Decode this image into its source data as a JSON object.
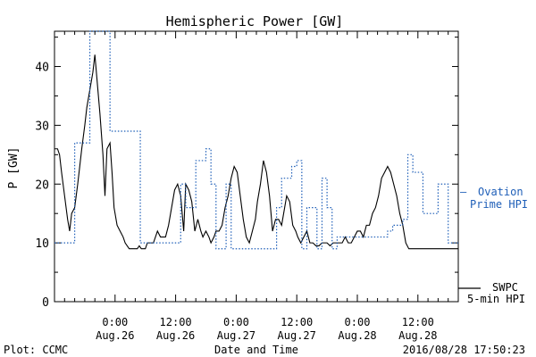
{
  "chart_data": {
    "type": "line",
    "title": "Hemispheric Power [GW]",
    "xlabel": "Date and Time",
    "ylabel": "P [GW]",
    "ylim": [
      0,
      46
    ],
    "yticks": [
      0,
      10,
      20,
      30,
      40
    ],
    "xlim_hours": [
      -6,
      30
    ],
    "xticks": [
      {
        "hour": 0,
        "time": "0:00",
        "date": "Aug.26"
      },
      {
        "hour": 6,
        "time": "12:00",
        "date": "Aug.26"
      },
      {
        "hour": 12,
        "time": "0:00",
        "date": "Aug.27"
      },
      {
        "hour": 18,
        "time": "12:00",
        "date": "Aug.27"
      },
      {
        "hour": 24,
        "time": "0:00",
        "date": "Aug.28"
      },
      {
        "hour": 30,
        "time": "12:00",
        "date": "Aug.28"
      }
    ],
    "series": [
      {
        "name": "SWPC 5-min HPI",
        "color": "#000000",
        "style": "solid",
        "x": [
          -6.0,
          -5.7,
          -5.5,
          -5.3,
          -5.0,
          -4.7,
          -4.5,
          -4.3,
          -4.0,
          -3.7,
          -3.5,
          -3.3,
          -3.0,
          -2.8,
          -2.5,
          -2.2,
          -2.0,
          -1.8,
          -1.5,
          -1.2,
          -1.0,
          -0.8,
          -0.5,
          -0.3,
          -0.1,
          0.2,
          0.5,
          0.8,
          1.0,
          1.2,
          1.4,
          1.6,
          1.8,
          2.0,
          2.2,
          2.4,
          2.6,
          2.8,
          3.0,
          3.2,
          3.5,
          3.8,
          4.0,
          4.2,
          4.5,
          4.8,
          5.0,
          5.3,
          5.6,
          5.9,
          6.2,
          6.5,
          6.8,
          7.0,
          7.3,
          7.6,
          7.9,
          8.2,
          8.5,
          8.7,
          9.0,
          9.3,
          9.5,
          9.8,
          10.0,
          10.3,
          10.6,
          10.9,
          11.2,
          11.5,
          11.8,
          12.1,
          12.4,
          12.7,
          13.0,
          13.3,
          13.6,
          13.9,
          14.1,
          14.4,
          14.7,
          15.0,
          15.3,
          15.6,
          15.9,
          16.2,
          16.5,
          16.8,
          17.0,
          17.3,
          17.6,
          17.9,
          18.1,
          18.4,
          18.7,
          19.0,
          19.3,
          19.6,
          19.9,
          20.2,
          20.5,
          20.8,
          21.0,
          21.3,
          21.6,
          21.9,
          22.2,
          22.5,
          22.8,
          23.1,
          23.4,
          23.7,
          24.0,
          24.3,
          24.6,
          24.9,
          25.2,
          25.5,
          25.8,
          26.1,
          26.4,
          26.7,
          27.0,
          27.3,
          27.6,
          27.9,
          28.2,
          28.5,
          28.8,
          29.1,
          29.4,
          29.7,
          30.0,
          30.3,
          30.6,
          30.9,
          31.2,
          31.5,
          31.8,
          32.1,
          32.4,
          32.6,
          32.9,
          33.2,
          33.5,
          33.8,
          34.0
        ],
        "y": [
          26,
          26,
          25,
          22,
          18,
          14,
          12,
          15,
          16,
          20,
          23,
          26,
          30,
          33,
          36,
          39,
          42,
          38,
          32,
          25,
          18,
          26,
          27,
          22,
          16,
          13,
          12,
          11,
          10,
          9.5,
          9,
          9,
          9,
          9,
          9,
          9.5,
          9,
          9,
          9,
          10,
          10,
          10,
          11,
          12,
          11,
          11,
          11,
          13,
          16,
          19,
          20,
          18,
          12,
          20,
          19,
          17,
          12,
          14,
          12,
          11,
          12,
          11,
          10,
          11,
          12,
          12,
          13,
          16,
          18,
          21,
          23,
          22,
          18,
          14,
          11,
          10,
          12,
          14,
          17,
          20,
          24,
          22,
          18,
          12,
          14,
          14,
          13,
          16,
          18,
          17,
          13,
          12,
          11,
          10,
          11,
          12,
          10,
          10,
          9.5,
          9.5,
          10,
          10,
          10,
          9.5,
          10,
          10,
          10,
          10,
          11,
          10,
          10,
          11,
          12,
          12,
          11,
          13,
          13,
          15,
          16,
          18,
          21,
          22,
          23,
          22,
          20,
          18,
          15,
          13,
          10,
          9,
          9,
          9,
          9,
          9,
          9,
          9,
          9,
          9,
          9,
          9,
          9,
          9,
          9,
          9,
          9,
          9,
          9
        ],
        "note_y_end": 9
      },
      {
        "name": "Ovation Prime HPI",
        "color": "#1f5fb8",
        "style": "dotted",
        "x": [
          -6.0,
          -5.0,
          -4.0,
          -3.5,
          -2.5,
          -1.5,
          -0.5,
          0.5,
          1.5,
          2.5,
          3.5,
          4.5,
          5.5,
          6.5,
          7.0,
          7.5,
          8.0,
          8.5,
          9.0,
          9.5,
          10.0,
          10.5,
          11.0,
          11.5,
          12.5,
          13.5,
          14.5,
          15.5,
          16.0,
          16.5,
          17.0,
          17.5,
          18.0,
          18.5,
          19.0,
          19.5,
          20.0,
          20.5,
          21.0,
          21.5,
          22.0,
          22.5,
          23.0,
          23.5,
          24.0,
          25.0,
          26.0,
          27.0,
          27.5,
          28.0,
          28.5,
          29.0,
          29.5,
          30.0,
          30.5,
          31.0,
          31.5,
          32.0,
          32.5,
          33.0,
          34.0
        ],
        "y": [
          10,
          10,
          27,
          27,
          46,
          46,
          29,
          29,
          29,
          10,
          10,
          10,
          10,
          20,
          16,
          16,
          24,
          24,
          26,
          20,
          9,
          9,
          20,
          9,
          9,
          9,
          9,
          9,
          16,
          21,
          21,
          23,
          24,
          9,
          16,
          16,
          9,
          21,
          16,
          9,
          11,
          11,
          11,
          11,
          11,
          11,
          11,
          12,
          13,
          13,
          14,
          25,
          22,
          22,
          15,
          15,
          15,
          20,
          20,
          10,
          10
        ]
      }
    ],
    "legend": {
      "placement": "right",
      "ovation_line1": "Ovation",
      "ovation_line2": "Prime HPI",
      "swpc_line1": "SWPC",
      "swpc_line2": "5-min HPI"
    },
    "footer": {
      "left": "Plot: CCMC",
      "right": "2016/08/28 17:50:23"
    }
  }
}
